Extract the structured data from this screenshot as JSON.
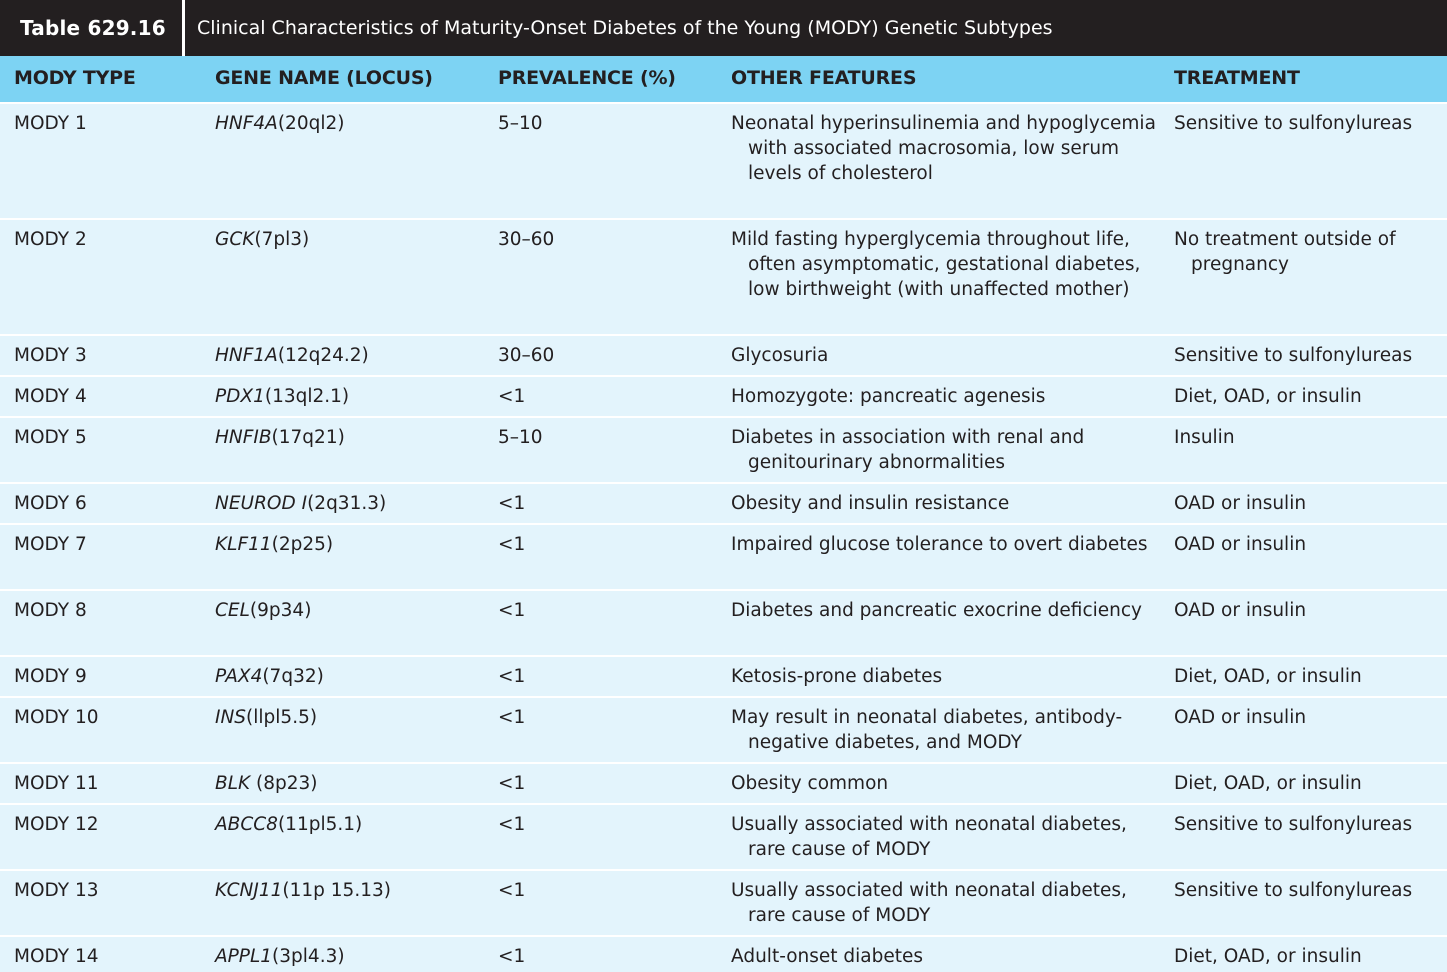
{
  "table_number": "Table 629.16",
  "title": "Clinical Characteristics of Maturity-Onset Diabetes of the Young (MODY) Genetic Subtypes",
  "headers": [
    "MODY TYPE",
    "GENE NAME (LOCUS)",
    "PREVALENCE (%)",
    "OTHER FEATURES",
    "TREATMENT"
  ],
  "rows": [
    {
      "type": "MODY 1",
      "gene": "HNF4A",
      "locus": "(20ql2)",
      "prevalence": "5–10",
      "features": "Neonatal hyperinsulinemia and hypoglycemia with associated macrosomia, low serum levels of cholesterol",
      "treatment": "Sensitive to sulfonylureas"
    },
    {
      "type": "MODY 2",
      "gene": "GCK",
      "locus": "(7pl3)",
      "prevalence": "30–60",
      "features": "Mild fasting hyperglycemia throughout life, often asymptomatic, gestational diabetes, low birthweight (with unaffected mother)",
      "treatment": "No treatment outside of pregnancy"
    },
    {
      "type": "MODY 3",
      "gene": "HNF1A",
      "locus": "(12q24.2)",
      "prevalence": "30–60",
      "features": "Glycosuria",
      "treatment": "Sensitive to sulfonylureas"
    },
    {
      "type": "MODY 4",
      "gene": "PDX1",
      "locus": "(13ql2.1)",
      "prevalence": "<1",
      "features": "Homozygote: pancreatic agenesis",
      "treatment": "Diet, OAD, or insulin"
    },
    {
      "type": "MODY 5",
      "gene": "HNFIB",
      "locus": "(17q21)",
      "prevalence": "5–10",
      "features": "Diabetes in association with renal and genitourinary abnormalities",
      "treatment": "Insulin"
    },
    {
      "type": "MODY 6",
      "gene": "NEUROD I",
      "locus": "(2q31.3)",
      "prevalence": "<1",
      "features": "Obesity and insulin resistance",
      "treatment": "OAD or insulin"
    },
    {
      "type": "MODY 7",
      "gene": "KLF11",
      "locus": "(2p25)",
      "prevalence": "<1",
      "features": "Impaired glucose tolerance to overt diabetes",
      "treatment": "OAD or insulin"
    },
    {
      "type": "MODY 8",
      "gene": "CEL",
      "locus": "(9p34)",
      "prevalence": "<1",
      "features": "Diabetes and pancreatic exocrine deficiency",
      "treatment": "OAD or insulin"
    },
    {
      "type": "MODY 9",
      "gene": "PAX4",
      "locus": "(7q32)",
      "prevalence": "<1",
      "features": "Ketosis-prone diabetes",
      "treatment": "Diet, OAD, or insulin"
    },
    {
      "type": "MODY 10",
      "gene": "INS",
      "locus": "(llpl5.5)",
      "prevalence": "<1",
      "features": "May result in neonatal diabetes, antibody-negative diabetes, and MODY",
      "treatment": "OAD or insulin"
    },
    {
      "type": "MODY 11",
      "gene": "BLK",
      "locus": " (8p23)",
      "prevalence": "<1",
      "features": "Obesity common",
      "treatment": "Diet, OAD, or insulin"
    },
    {
      "type": "MODY 12",
      "gene": "ABCC8",
      "locus": "(11pl5.1)",
      "prevalence": "<1",
      "features": "Usually associated with neonatal diabetes, rare cause of MODY",
      "treatment": "Sensitive to sulfonylureas"
    },
    {
      "type": "MODY 13",
      "gene": "KCNJ11",
      "locus": "(11p 15.13)",
      "prevalence": "<1",
      "features": "Usually associated with neonatal diabetes, rare cause of MODY",
      "treatment": "Sensitive to sulfonylureas"
    },
    {
      "type": "MODY 14",
      "gene": "APPL1",
      "locus": "(3pl4.3)",
      "prevalence": "<1",
      "features": "Adult-onset diabetes",
      "treatment": "Diet, OAD, or insulin"
    }
  ]
}
